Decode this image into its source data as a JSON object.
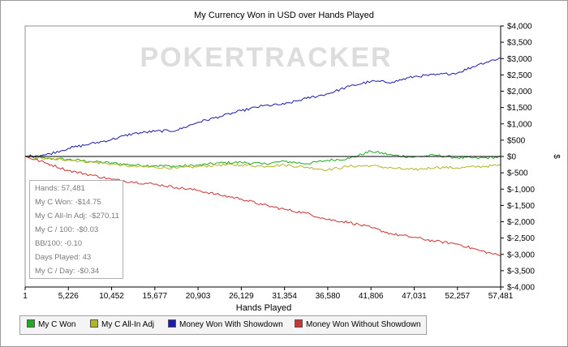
{
  "chart_data": {
    "type": "line",
    "title": "My Currency Won in USD over Hands Played",
    "xlabel": "Hands Played",
    "ylabel": "$",
    "xlim": [
      1,
      57481
    ],
    "ylim": [
      -4000,
      4000
    ],
    "x_ticks": [
      "1",
      "5,226",
      "10,452",
      "15,677",
      "20,903",
      "26,129",
      "31,354",
      "36,580",
      "41,806",
      "47,031",
      "52,257",
      "57,481"
    ],
    "y_ticks": [
      {
        "value": 4000,
        "label": "$4,000"
      },
      {
        "value": 3500,
        "label": "$3,500"
      },
      {
        "value": 3000,
        "label": "$3,000"
      },
      {
        "value": 2500,
        "label": "$2,500"
      },
      {
        "value": 2000,
        "label": "$2,000"
      },
      {
        "value": 1500,
        "label": "$1,500"
      },
      {
        "value": 1000,
        "label": "$1,000"
      },
      {
        "value": 500,
        "label": "$500"
      },
      {
        "value": 0,
        "label": "$0"
      },
      {
        "value": -500,
        "label": "$-500"
      },
      {
        "value": -1000,
        "label": "$-1,000"
      },
      {
        "value": -1500,
        "label": "$-1,500"
      },
      {
        "value": -2000,
        "label": "$-2,000"
      },
      {
        "value": -2500,
        "label": "$-2,500"
      },
      {
        "value": -3000,
        "label": "$-3,000"
      },
      {
        "value": -3500,
        "label": "$-3,500"
      },
      {
        "value": -4000,
        "label": "$-4,000"
      }
    ],
    "x": [
      1,
      2500,
      5226,
      7800,
      10452,
      13000,
      15677,
      18300,
      20903,
      23500,
      26129,
      28700,
      31354,
      34000,
      36580,
      39200,
      41806,
      44400,
      47031,
      49600,
      52257,
      54900,
      57481
    ],
    "series": [
      {
        "name": "My C Won",
        "color": "#22aa22",
        "values": [
          0,
          -60,
          -90,
          -150,
          -200,
          -260,
          -280,
          -300,
          -270,
          -200,
          -180,
          -230,
          -150,
          -220,
          -120,
          -60,
          160,
          40,
          -20,
          40,
          -40,
          -50,
          -15
        ]
      },
      {
        "name": "My C All-In Adj",
        "color": "#b4b428",
        "values": [
          0,
          -70,
          -100,
          -170,
          -230,
          -310,
          -330,
          -360,
          -310,
          -260,
          -260,
          -300,
          -260,
          -330,
          -410,
          -300,
          -280,
          -360,
          -410,
          -330,
          -350,
          -310,
          -270
        ]
      },
      {
        "name": "Money Won With Showdown",
        "color": "#1c1caa",
        "values": [
          0,
          50,
          250,
          380,
          520,
          700,
          770,
          800,
          1050,
          1220,
          1400,
          1550,
          1600,
          1780,
          1920,
          2150,
          2300,
          2280,
          2450,
          2500,
          2560,
          2830,
          3020
        ]
      },
      {
        "name": "Money Won Without Showdown",
        "color": "#cc3333",
        "values": [
          0,
          -200,
          -430,
          -560,
          -700,
          -780,
          -850,
          -950,
          -1040,
          -1180,
          -1300,
          -1480,
          -1620,
          -1740,
          -1930,
          -2020,
          -2180,
          -2380,
          -2480,
          -2600,
          -2680,
          -2880,
          -3040
        ]
      }
    ]
  },
  "watermark": "POKERTRACKER",
  "stats": [
    "Hands: 57,481",
    "My C Won: -$14.75",
    "My C All-In Adj: -$270.11",
    "My C / 100: -$0.03",
    "BB/100: -0.10",
    "Days Played: 43",
    "My C / Day: -$0.34"
  ]
}
